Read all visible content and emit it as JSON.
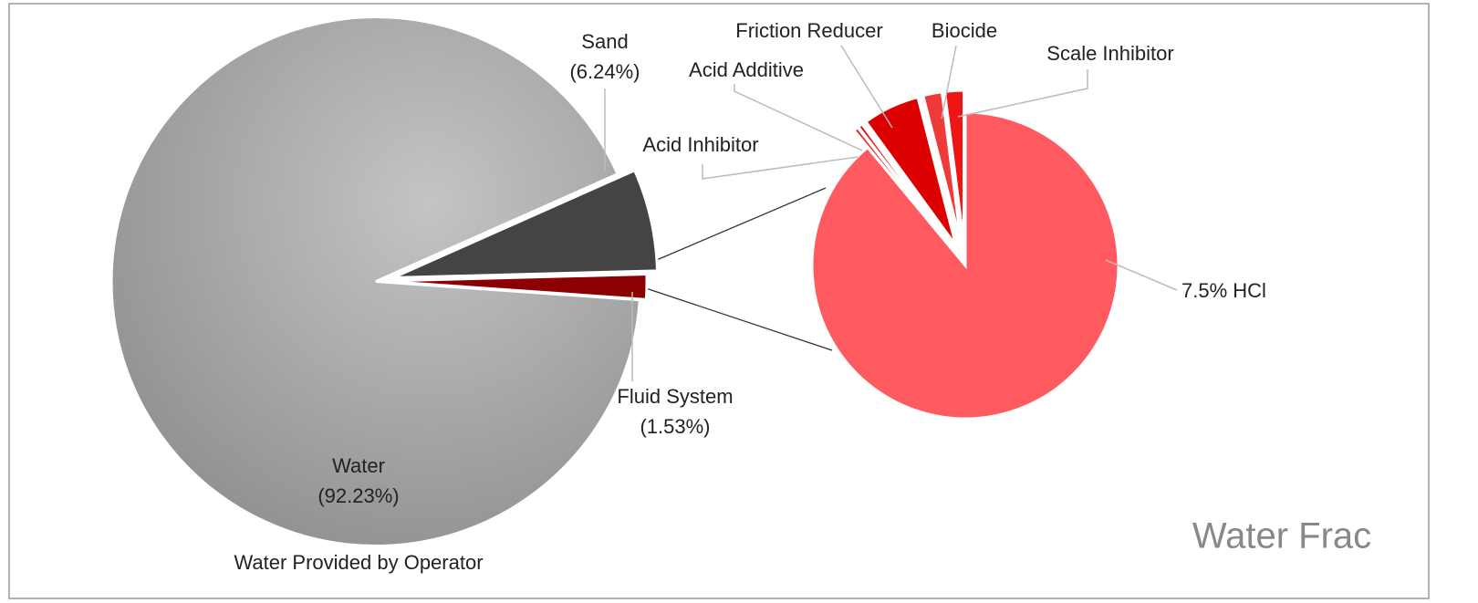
{
  "chart_data": [
    {
      "type": "pie",
      "categories": [
        "Water",
        "Sand",
        "Fluid System"
      ],
      "values": [
        92.23,
        6.24,
        1.53
      ],
      "value_labels": [
        "(92.23%)",
        "(6.24%)",
        "(1.53%)"
      ],
      "colors": [
        "#b4b4b4",
        "#444444",
        "#8b0000"
      ],
      "annotations": [
        "Water Provided by Operator"
      ]
    },
    {
      "type": "pie",
      "categories": [
        "7.5% HCl",
        "Acid Inhibitor",
        "Acid Additive",
        "Friction Reducer",
        "Biocide",
        "Scale Inhibitor"
      ],
      "values": [
        89,
        0.5,
        0.5,
        6,
        2,
        2
      ],
      "colors": [
        "#ff5a5f",
        "#e83030",
        "#e02020",
        "#dd0000",
        "#f03a3a",
        "#ee1515"
      ],
      "annotations": [
        "Water Frac"
      ]
    }
  ]
}
